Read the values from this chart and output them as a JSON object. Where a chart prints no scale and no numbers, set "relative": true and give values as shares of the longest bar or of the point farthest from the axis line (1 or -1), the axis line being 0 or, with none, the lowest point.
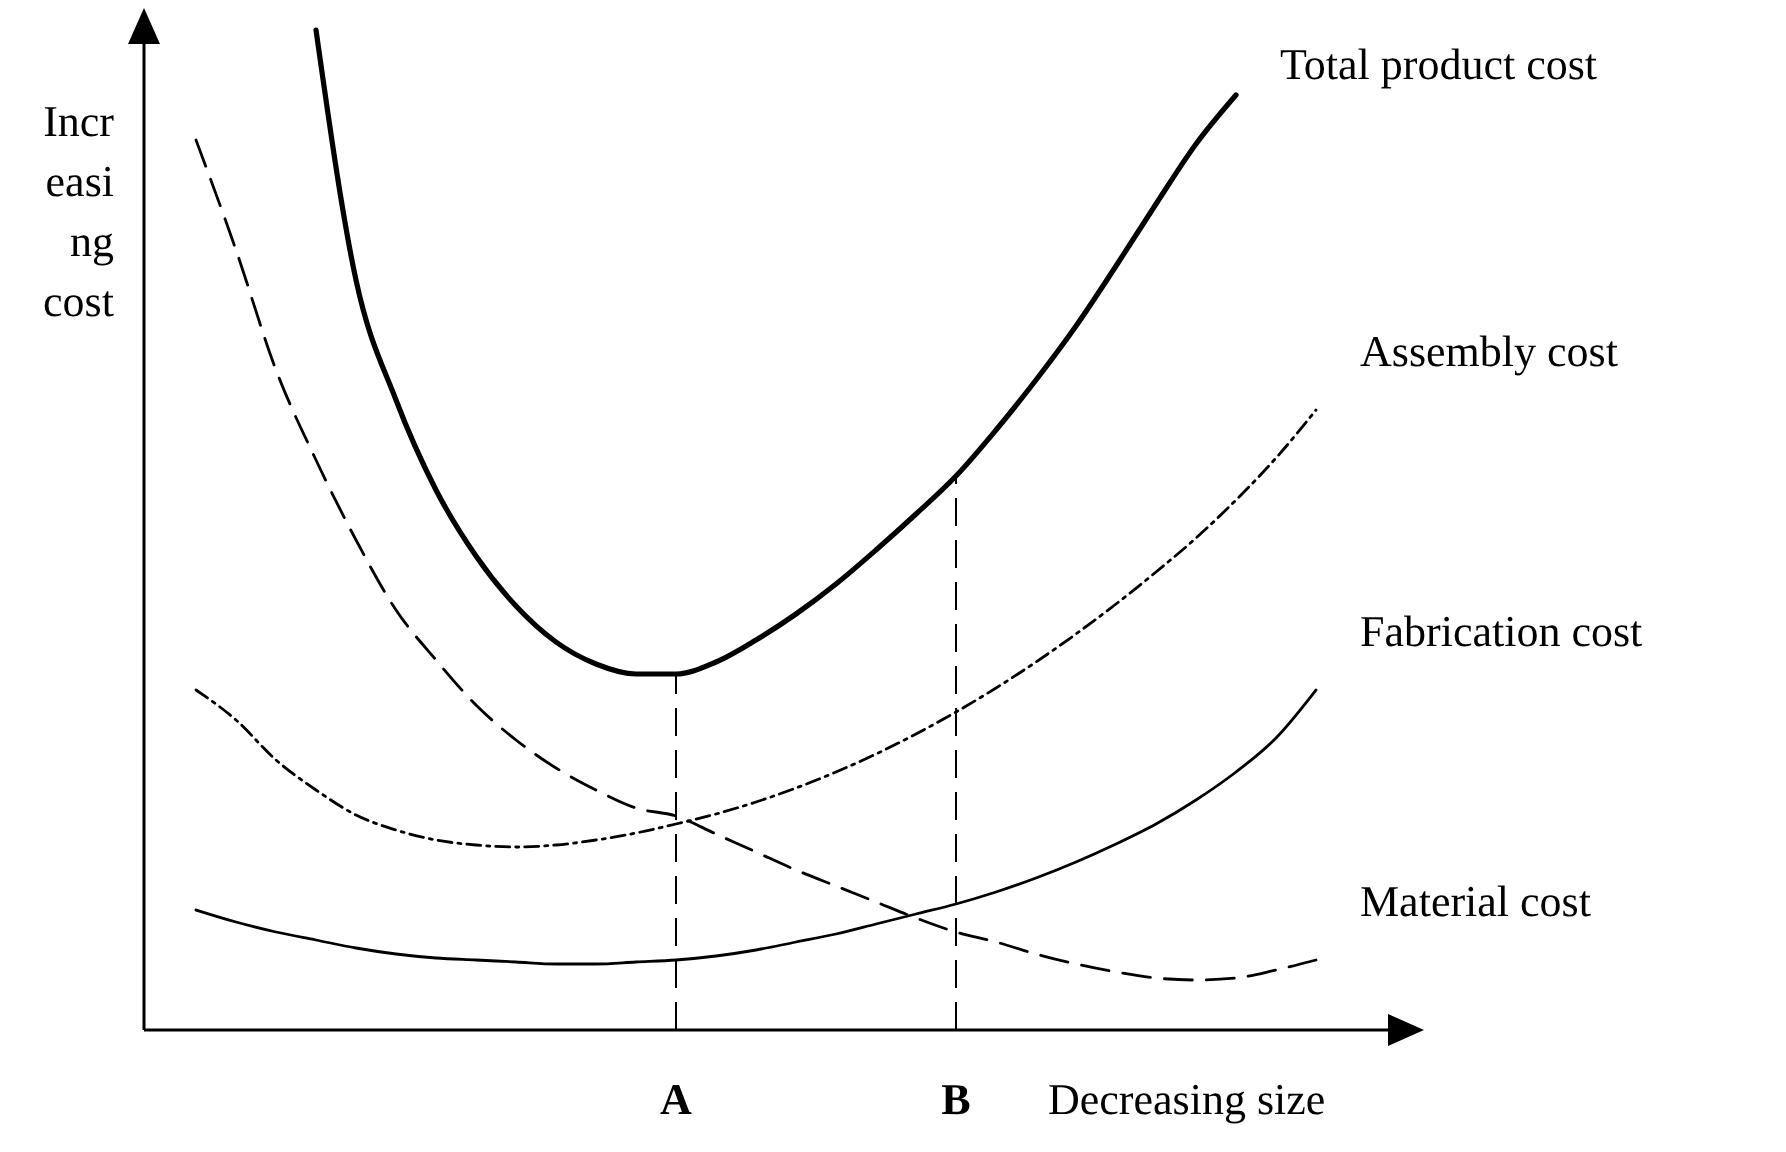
{
  "chart_data": {
    "type": "line",
    "relative": true,
    "xlabel": "Decreasing size",
    "ylabel": "Increasing cost",
    "marker": "none",
    "categories": [
      null,
      null,
      null,
      null,
      null,
      null,
      null,
      null,
      null,
      null,
      null,
      null,
      null,
      "A",
      null,
      null,
      null,
      null,
      null,
      null,
      "B",
      null,
      null,
      null,
      null,
      null,
      null,
      null,
      null,
      null,
      null,
      null
    ],
    "series": [
      {
        "name": "Total product cost",
        "color": "#000000",
        "line_style": "solid",
        "values": [
          null,
          null,
          null,
          null,
          1.0,
          0.75,
          0.63,
          0.54,
          0.474,
          0.424,
          0.388,
          0.366,
          0.356,
          0.356,
          0.368,
          0.39,
          0.416,
          0.446,
          0.48,
          0.516,
          0.554,
          0.6,
          0.65,
          0.704,
          0.764,
          0.826,
          0.886,
          0.935,
          null,
          null,
          null,
          null
        ]
      },
      {
        "name": "Assembly cost",
        "color": "#000000",
        "line_style": "dotted",
        "values": [
          null,
          0.34,
          0.31,
          0.27,
          0.24,
          0.215,
          0.2,
          0.19,
          0.185,
          0.183,
          0.185,
          0.19,
          0.197,
          0.206,
          0.216,
          0.228,
          0.242,
          0.258,
          0.276,
          0.296,
          0.318,
          0.342,
          0.368,
          0.396,
          0.426,
          0.458,
          0.492,
          0.53,
          0.572,
          0.62,
          null,
          null
        ]
      },
      {
        "name": "Fabrication cost",
        "color": "#000000",
        "line_style": "solid",
        "values": [
          null,
          0.12,
          0.108,
          0.098,
          0.09,
          0.082,
          0.076,
          0.072,
          0.07,
          0.068,
          0.066,
          0.066,
          0.068,
          0.07,
          0.074,
          0.08,
          0.088,
          0.096,
          0.106,
          0.116,
          0.126,
          0.138,
          0.152,
          0.168,
          0.186,
          0.206,
          0.23,
          0.258,
          0.292,
          0.34,
          null,
          null
        ]
      },
      {
        "name": "Material cost",
        "color": "#000000",
        "line_style": "dashed",
        "values": [
          null,
          0.89,
          0.78,
          0.66,
          0.57,
          0.49,
          0.42,
          0.37,
          0.325,
          0.29,
          0.262,
          0.24,
          0.222,
          0.214,
          0.196,
          0.178,
          0.16,
          0.144,
          0.128,
          0.112,
          0.098,
          0.088,
          0.076,
          0.066,
          0.058,
          0.052,
          0.05,
          0.052,
          0.06,
          0.07,
          null,
          null
        ]
      }
    ],
    "ref_lines": [
      {
        "axis": "x",
        "value": "A",
        "line_style": "dashed"
      },
      {
        "axis": "x",
        "value": "B",
        "line_style": "dashed"
      }
    ]
  }
}
